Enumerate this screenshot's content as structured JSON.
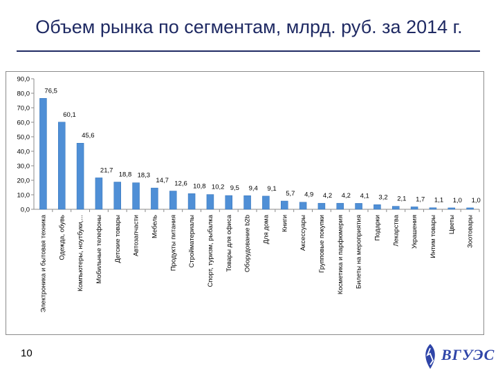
{
  "slide": {
    "title": "Объем рынка по сегментам, млрд. руб. за 2014 г.",
    "page_number": "10",
    "logo_text": "ВГУЭС"
  },
  "colors": {
    "title": "#1f2a63",
    "bar": "#4f8fd6",
    "bar_edge": "#2f6fb8"
  },
  "chart_data": {
    "type": "bar",
    "title": "",
    "xlabel": "",
    "ylabel": "",
    "ylim": [
      0,
      90
    ],
    "yticks": [
      "0,0",
      "10,0",
      "20,0",
      "30,0",
      "40,0",
      "50,0",
      "60,0",
      "70,0",
      "80,0",
      "90,0"
    ],
    "ytick_values": [
      0,
      10,
      20,
      30,
      40,
      50,
      60,
      70,
      80,
      90
    ],
    "categories": [
      "Электроника и бытовая техника",
      "Одежда, обувь",
      "Компьютеры, ноутбуки,...",
      "Мобильные телефоны",
      "Детские товары",
      "Автозапчасти",
      "Мебель",
      "Продукты питания",
      "Стройматериалы",
      "Спорт, туризм, рыбалка",
      "Товары для офиса",
      "Оборудование b2b",
      "Для дома",
      "Книги",
      "Аксессуары",
      "Групповые покупки",
      "Косметика и парфюмерия",
      "Билеты на мероприятия",
      "Подарки",
      "Лекарства",
      "Украшения",
      "Интим товары",
      "Цветы",
      "Зоотовары"
    ],
    "values": [
      76.5,
      60.1,
      45.6,
      21.7,
      18.8,
      18.3,
      14.7,
      12.6,
      10.8,
      10.2,
      9.5,
      9.4,
      9.1,
      5.7,
      4.9,
      4.2,
      4.2,
      4.1,
      3.2,
      2.1,
      1.7,
      1.1,
      1.0,
      1.0
    ],
    "data_labels": [
      "76,5",
      "60,1",
      "45,6",
      "21,7",
      "18,8",
      "18,3",
      "14,7",
      "12,6",
      "10,8",
      "10,2",
      "9,5",
      "9,4",
      "9,1",
      "5,7",
      "4,9",
      "4,2",
      "4,2",
      "4,1",
      "3,2",
      "2,1",
      "1,7",
      "1,1",
      "1,0",
      "1,0"
    ],
    "grid": false,
    "legend": "none"
  }
}
